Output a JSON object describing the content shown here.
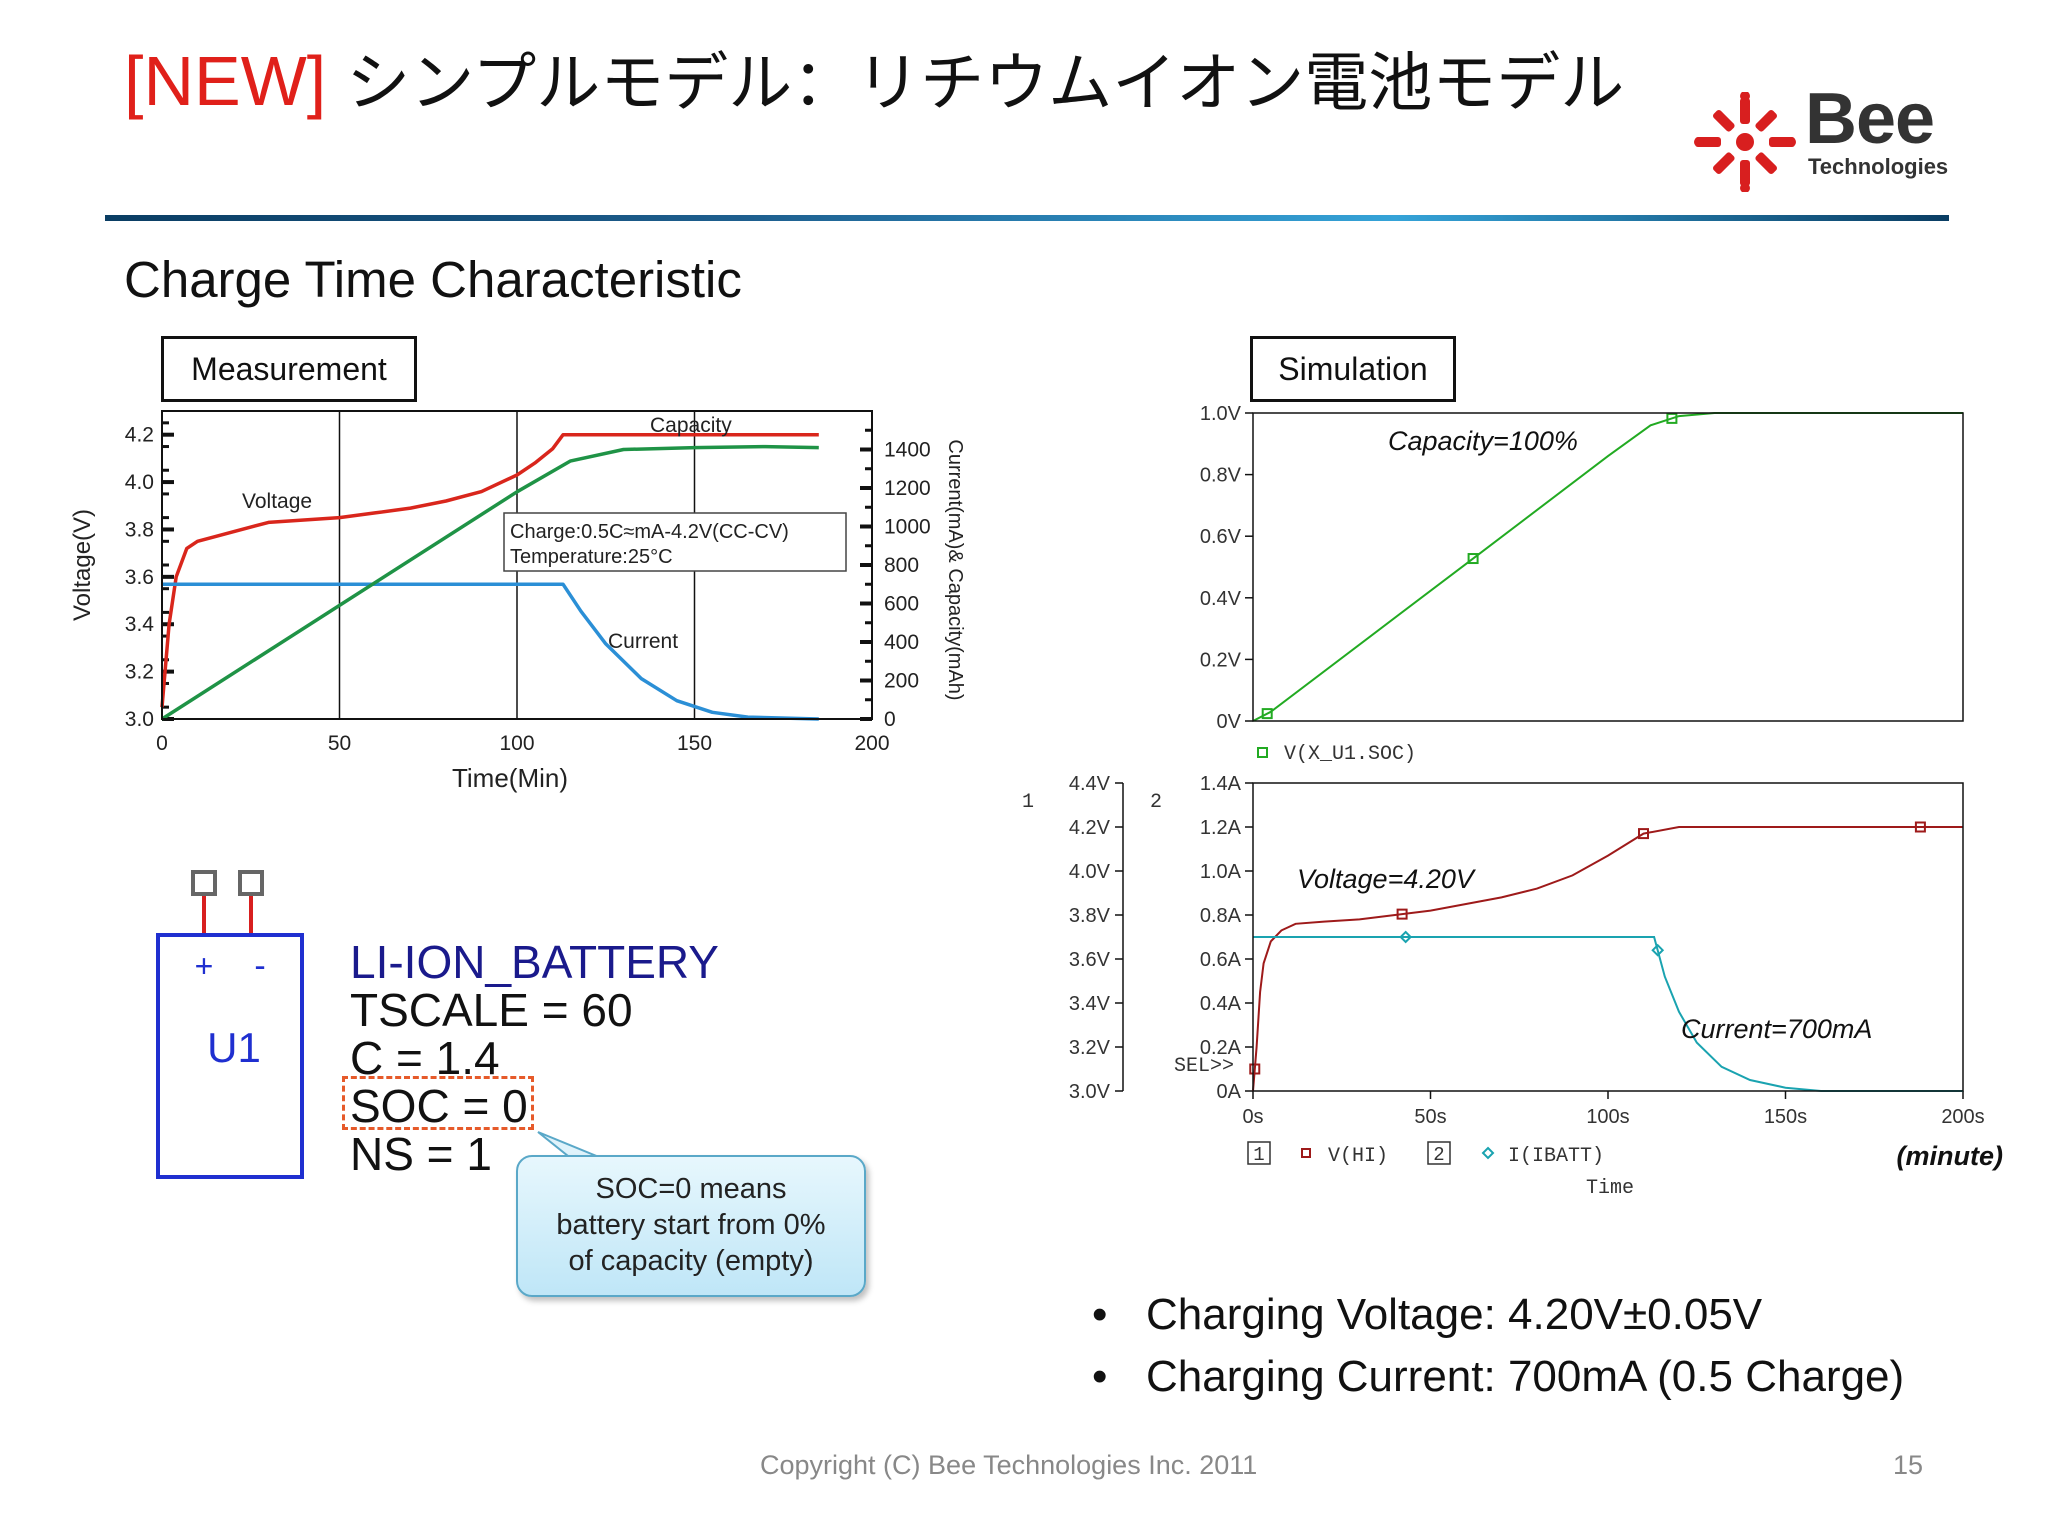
{
  "slide": {
    "title_tag": "[NEW]",
    "title_rest": "シンプルモデル：リチウムイオン電池モデル",
    "subtitle": "Charge Time Characteristic",
    "measurement_label": "Measurement",
    "simulation_label": "Simulation",
    "footer": "Copyright (C) Bee Technologies Inc. 2011",
    "page_number": "15"
  },
  "logo": {
    "word": "Bee",
    "sub": "Technologies"
  },
  "symbol": {
    "plus": "+",
    "minus": "-",
    "ref": "U1",
    "name": "LI-ION_BATTERY",
    "params": [
      "TSCALE = 60",
      "C = 1.4",
      "SOC = 0",
      "NS = 1"
    ]
  },
  "callout": {
    "lines": [
      "SOC=0 means",
      "battery start from 0%",
      "of capacity (empty)"
    ]
  },
  "bullets": [
    {
      "label": "Charging Voltage: 4.20V±0.05V"
    },
    {
      "label": "Charging Current: 700mA (0.5 Charge)"
    }
  ],
  "chart_data": [
    {
      "id": "measurement",
      "type": "line",
      "xlabel": "Time(Min)",
      "ylabel": "Voltage(V)",
      "y2label": "Current(mA)& Capacity(mAh)",
      "xlim": [
        0,
        200
      ],
      "ylim": [
        3.0,
        4.3
      ],
      "y2lim": [
        0,
        1600
      ],
      "xticks": [
        "0",
        "50",
        "100",
        "150",
        "200"
      ],
      "yticks": [
        "3.0",
        "3.2",
        "3.4",
        "3.6",
        "3.8",
        "4.0",
        "4.2"
      ],
      "y2ticks": [
        "0",
        "200",
        "400",
        "600",
        "800",
        "1000",
        "1200",
        "1400"
      ],
      "annotations": [
        "Capacity",
        "Voltage",
        "Current"
      ],
      "condition": [
        "Charge:0.5C≈mA-4.2V(CC-CV)",
        "Temperature:25°C"
      ],
      "series": [
        {
          "name": "Voltage",
          "axis": "y",
          "color": "#d9261c",
          "x": [
            0,
            2,
            4,
            7,
            10,
            15,
            20,
            30,
            40,
            50,
            60,
            70,
            80,
            90,
            100,
            105,
            110,
            113,
            125,
            150,
            185
          ],
          "y": [
            3.05,
            3.4,
            3.6,
            3.72,
            3.75,
            3.77,
            3.79,
            3.83,
            3.84,
            3.85,
            3.87,
            3.89,
            3.92,
            3.96,
            4.03,
            4.08,
            4.14,
            4.2,
            4.2,
            4.2,
            4.2
          ]
        },
        {
          "name": "Current",
          "axis": "y2",
          "color": "#2b8fd6",
          "x": [
            0,
            50,
            100,
            113,
            118,
            125,
            135,
            145,
            155,
            165,
            185
          ],
          "y": [
            700,
            700,
            700,
            700,
            560,
            390,
            210,
            95,
            35,
            10,
            0
          ]
        },
        {
          "name": "Capacity",
          "axis": "y2",
          "color": "#1f9346",
          "x": [
            0,
            50,
            100,
            115,
            130,
            150,
            170,
            185
          ],
          "y": [
            0,
            590,
            1180,
            1340,
            1400,
            1410,
            1415,
            1410
          ]
        }
      ]
    },
    {
      "id": "simulation-soc",
      "type": "line",
      "ylim": [
        0,
        1.0
      ],
      "yticks": [
        "0V",
        "0.2V",
        "0.4V",
        "0.6V",
        "0.8V",
        "1.0V"
      ],
      "xlim": [
        0,
        200
      ],
      "annotation": "Capacity=100%",
      "legend": "V(X_U1.SOC)",
      "series": [
        {
          "name": "V(X_U1.SOC)",
          "color": "#22aa22",
          "x": [
            0,
            5,
            60,
            100,
            112,
            120,
            130,
            200
          ],
          "y": [
            0,
            0.03,
            0.51,
            0.86,
            0.96,
            0.99,
            1.0,
            1.0
          ]
        }
      ]
    },
    {
      "id": "simulation-vi",
      "type": "line",
      "xlabel": "Time",
      "xunit": "(minute)",
      "xlim": [
        0,
        200
      ],
      "xticks": [
        "0s",
        "50s",
        "100s",
        "150s",
        "200s"
      ],
      "y1ticks": [
        "3.0V",
        "3.2V",
        "3.4V",
        "3.6V",
        "3.8V",
        "4.0V",
        "4.2V",
        "4.4V"
      ],
      "y2ticks": [
        "0A",
        "0.2A",
        "0.4A",
        "0.6A",
        "0.8A",
        "1.0A",
        "1.2A",
        "1.4A"
      ],
      "axis_ids": [
        "1",
        "2"
      ],
      "sel_marker": "SEL>>",
      "annotations": [
        "Voltage=4.20V",
        "Current=700mA"
      ],
      "legend": [
        {
          "axis": "1",
          "name": "V(HI)"
        },
        {
          "axis": "2",
          "name": "I(IBATT)"
        }
      ],
      "series": [
        {
          "name": "V(HI)",
          "axis": "1",
          "color": "#9e1a1a",
          "x": [
            0,
            1,
            2,
            3,
            5,
            8,
            12,
            20,
            30,
            40,
            50,
            60,
            70,
            80,
            90,
            100,
            110,
            120,
            200
          ],
          "y": [
            3.0,
            3.2,
            3.45,
            3.58,
            3.68,
            3.73,
            3.76,
            3.77,
            3.78,
            3.8,
            3.82,
            3.85,
            3.88,
            3.92,
            3.98,
            4.07,
            4.17,
            4.2,
            4.2
          ]
        },
        {
          "name": "I(IBATT)",
          "axis": "2",
          "color": "#1aa3b0",
          "x": [
            0,
            40,
            113,
            116,
            120,
            125,
            132,
            140,
            150,
            160,
            200
          ],
          "y": [
            0.7,
            0.7,
            0.7,
            0.52,
            0.36,
            0.22,
            0.11,
            0.05,
            0.015,
            0.0,
            0.0
          ]
        }
      ]
    }
  ]
}
